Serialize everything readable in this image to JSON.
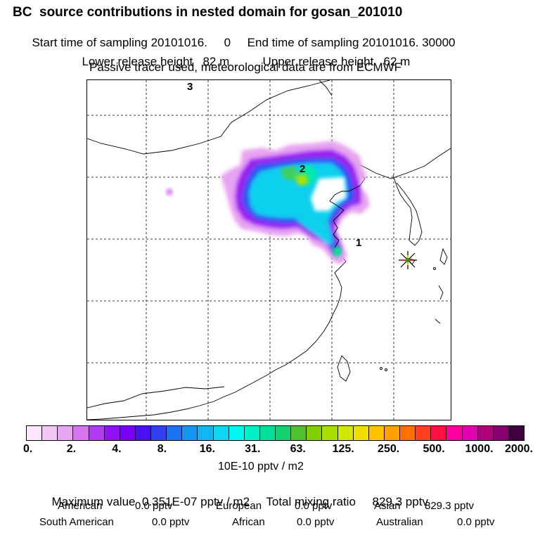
{
  "header": {
    "title": "BC  source contributions in nested domain for gosan_201010",
    "start_label": "Start time of sampling",
    "start_value": "20101016.     0",
    "end_label": "End time of sampling",
    "end_value": "20101016. 30000",
    "lower_label": "Lower release height",
    "lower_value": "82 m",
    "upper_label": "Upper release height",
    "upper_value": "62 m",
    "note": "Passive tracer used, meteorological data are from ECMWF"
  },
  "map": {
    "labels": [
      {
        "id": "1",
        "text": "1"
      },
      {
        "id": "2",
        "text": "2"
      },
      {
        "id": "3",
        "text": "3"
      }
    ],
    "receptor": "gosan"
  },
  "colorbar": {
    "colors": [
      "#fbe6fb",
      "#f4c7f5",
      "#e9a6f0",
      "#d676ee",
      "#b23cf2",
      "#9212f6",
      "#7a00f4",
      "#4a10f3",
      "#3140f3",
      "#1d72f2",
      "#1497f4",
      "#10b7f4",
      "#0fd6f3",
      "#00f6f0",
      "#00f0c8",
      "#00e09a",
      "#10d070",
      "#50c030",
      "#80d000",
      "#a8e000",
      "#d2e800",
      "#f0e000",
      "#ffc000",
      "#ffa000",
      "#ff7000",
      "#ff4020",
      "#ff1040",
      "#ff00a0",
      "#e000b0",
      "#b0007a",
      "#880070",
      "#400040"
    ],
    "ticks": [
      "0.",
      "2.",
      "4.",
      "8.",
      "16.",
      "31.",
      "63.",
      "125.",
      "250.",
      "500.",
      "1000.",
      "2000."
    ],
    "units": "10E-10 pptv / m2"
  },
  "summary": {
    "max_label": "Maximum value",
    "max_value": "0.351E-07 pptv / m2",
    "total_label": "Total mixing ratio",
    "total_value": "829.3 pptv",
    "regions": [
      {
        "name": "American",
        "value": "0.0 pptv"
      },
      {
        "name": "European",
        "value": "0.0 pptv"
      },
      {
        "name": "Asian",
        "value": "829.3 pptv"
      },
      {
        "name": "South American",
        "value": "0.0 pptv"
      },
      {
        "name": "African",
        "value": "0.0 pptv"
      },
      {
        "name": "Australian",
        "value": "0.0 pptv"
      }
    ]
  }
}
